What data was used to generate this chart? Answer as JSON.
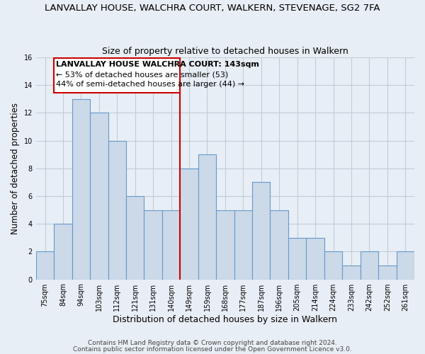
{
  "title": "LANVALLAY HOUSE, WALCHRA COURT, WALKERN, STEVENAGE, SG2 7FA",
  "subtitle": "Size of property relative to detached houses in Walkern",
  "xlabel": "Distribution of detached houses by size in Walkern",
  "ylabel": "Number of detached properties",
  "categories": [
    "75sqm",
    "84sqm",
    "94sqm",
    "103sqm",
    "112sqm",
    "121sqm",
    "131sqm",
    "140sqm",
    "149sqm",
    "159sqm",
    "168sqm",
    "177sqm",
    "187sqm",
    "196sqm",
    "205sqm",
    "214sqm",
    "224sqm",
    "233sqm",
    "242sqm",
    "252sqm",
    "261sqm"
  ],
  "values": [
    2,
    4,
    13,
    12,
    10,
    6,
    5,
    5,
    8,
    9,
    5,
    5,
    7,
    5,
    3,
    3,
    2,
    1,
    2,
    1,
    2
  ],
  "bar_color": "#ccd9e8",
  "bar_edge_color": "#6699cc",
  "reference_line_x": 7.5,
  "reference_line_color": "#cc0000",
  "ylim": [
    0,
    16
  ],
  "yticks": [
    0,
    2,
    4,
    6,
    8,
    10,
    12,
    14,
    16
  ],
  "annotation_title": "LANVALLAY HOUSE WALCHRA COURT: 143sqm",
  "annotation_line1": "← 53% of detached houses are smaller (53)",
  "annotation_line2": "44% of semi-detached houses are larger (44) →",
  "footer1": "Contains HM Land Registry data © Crown copyright and database right 2024.",
  "footer2": "Contains public sector information licensed under the Open Government Licence v3.0.",
  "bg_color": "#e8eef5",
  "grid_color": "#c0cdd8",
  "title_fontsize": 9.5,
  "subtitle_fontsize": 9,
  "xlabel_fontsize": 9,
  "ylabel_fontsize": 8.5,
  "tick_fontsize": 7,
  "footer_fontsize": 6.5,
  "annotation_fontsize": 8
}
